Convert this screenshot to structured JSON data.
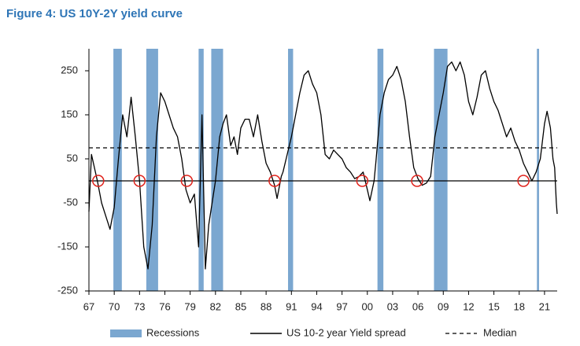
{
  "chart_data": {
    "type": "line",
    "title": "Figure 4: US 10Y-2Y yield curve",
    "xlim": [
      1967,
      2022.5
    ],
    "xticks": [
      {
        "value": 1967,
        "label": "67"
      },
      {
        "value": 1970,
        "label": "70"
      },
      {
        "value": 1973,
        "label": "73"
      },
      {
        "value": 1976,
        "label": "76"
      },
      {
        "value": 1979,
        "label": "79"
      },
      {
        "value": 1982,
        "label": "82"
      },
      {
        "value": 1985,
        "label": "85"
      },
      {
        "value": 1988,
        "label": "88"
      },
      {
        "value": 1991,
        "label": "91"
      },
      {
        "value": 1994,
        "label": "94"
      },
      {
        "value": 1997,
        "label": "97"
      },
      {
        "value": 2000,
        "label": "00"
      },
      {
        "value": 2003,
        "label": "03"
      },
      {
        "value": 2006,
        "label": "06"
      },
      {
        "value": 2009,
        "label": "09"
      },
      {
        "value": 2012,
        "label": "12"
      },
      {
        "value": 2015,
        "label": "15"
      },
      {
        "value": 2018,
        "label": "18"
      },
      {
        "value": 2021,
        "label": "21"
      }
    ],
    "ylim": [
      -250,
      300
    ],
    "yticks": [
      250,
      150,
      50,
      -50,
      -150,
      -250
    ],
    "x": [
      1967,
      1967.3,
      1968,
      1968.5,
      1969,
      1969.5,
      1970,
      1970.5,
      1971,
      1971.5,
      1972,
      1972.5,
      1973,
      1973.5,
      1974,
      1974.5,
      1975,
      1975.5,
      1976,
      1976.5,
      1977,
      1977.5,
      1978,
      1978.5,
      1979,
      1979.5,
      1980,
      1980.4,
      1980.8,
      1981.2,
      1981.6,
      1982,
      1982.5,
      1982.9,
      1983.3,
      1983.8,
      1984.2,
      1984.6,
      1985,
      1985.5,
      1986,
      1986.5,
      1987,
      1987.5,
      1988,
      1988.5,
      1989,
      1989.3,
      1989.8,
      1990,
      1990.5,
      1991,
      1991.5,
      1992,
      1992.5,
      1993,
      1993.5,
      1994,
      1994.5,
      1995,
      1995.5,
      1996,
      1996.5,
      1997,
      1997.5,
      1998,
      1998.5,
      1999,
      1999.5,
      2000,
      2000.3,
      2000.8,
      2001,
      2001.5,
      2002,
      2002.5,
      2003,
      2003.5,
      2004,
      2004.5,
      2005,
      2005.5,
      2006,
      2006.5,
      2007,
      2007.5,
      2008,
      2008.5,
      2009,
      2009.5,
      2010,
      2010.5,
      2011,
      2011.5,
      2012,
      2012.5,
      2013,
      2013.5,
      2014,
      2014.5,
      2015,
      2015.5,
      2016,
      2016.5,
      2017,
      2017.5,
      2018,
      2018.5,
      2019,
      2019.5,
      2020,
      2020.5,
      2021,
      2021.3,
      2021.7,
      2022,
      2022.2,
      2022.4,
      2022.5
    ],
    "series": [
      {
        "name": "US 10-2 year Yield spread",
        "color": "#000000",
        "values": [
          -70,
          60,
          0,
          -50,
          -80,
          -110,
          -60,
          50,
          150,
          100,
          190,
          100,
          0,
          -150,
          -200,
          -100,
          100,
          200,
          180,
          150,
          120,
          100,
          50,
          -20,
          -50,
          -30,
          -150,
          150,
          -200,
          -100,
          -50,
          0,
          100,
          130,
          150,
          80,
          100,
          60,
          120,
          140,
          140,
          100,
          150,
          90,
          40,
          20,
          -10,
          -40,
          10,
          20,
          60,
          100,
          150,
          200,
          240,
          250,
          220,
          200,
          150,
          60,
          50,
          70,
          60,
          50,
          30,
          20,
          5,
          10,
          20,
          -20,
          -45,
          0,
          40,
          150,
          200,
          230,
          240,
          260,
          230,
          180,
          100,
          30,
          5,
          -10,
          -5,
          10,
          100,
          150,
          200,
          260,
          270,
          250,
          270,
          240,
          180,
          150,
          190,
          240,
          250,
          210,
          180,
          160,
          130,
          100,
          120,
          90,
          70,
          40,
          20,
          0,
          20,
          50,
          130,
          158,
          120,
          50,
          30,
          -50,
          -75
        ]
      }
    ],
    "median": {
      "name": "Median",
      "value": 75
    },
    "recessions": {
      "name": "Recessions",
      "color": "#7ba7d0",
      "ranges": [
        [
          1969.9,
          1970.9
        ],
        [
          1973.8,
          1975.2
        ],
        [
          1980.0,
          1980.6
        ],
        [
          1981.5,
          1982.9
        ],
        [
          1990.6,
          1991.2
        ],
        [
          2001.2,
          2001.9
        ],
        [
          2007.9,
          2009.5
        ],
        [
          2020.1,
          2020.35
        ]
      ]
    },
    "inversions": {
      "color": "#e0231c",
      "x": [
        1968.1,
        1973.0,
        1978.6,
        1989.0,
        1999.4,
        2005.9,
        2018.5
      ],
      "values": [
        0,
        0,
        0,
        0,
        0,
        0,
        0
      ]
    }
  }
}
